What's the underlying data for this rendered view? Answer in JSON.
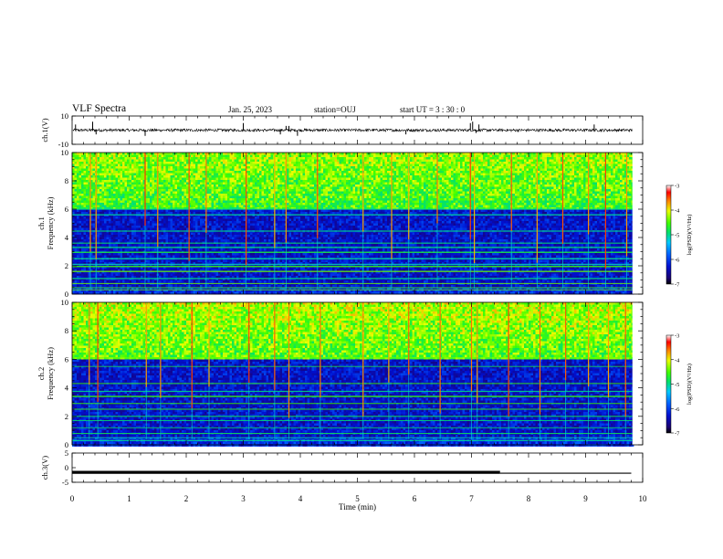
{
  "header": {
    "title": "VLF Spectra",
    "date": "Jan. 25, 2023",
    "station": "station=OUJ",
    "start": "start UT =  3 : 30 : 0"
  },
  "chart_data": [
    {
      "type": "line",
      "panel": "ch1-waveform",
      "ylabel": "ch.1(V)",
      "ylim": [
        -10,
        10
      ],
      "yticks": [
        "10",
        "-10"
      ],
      "xlim": [
        0,
        10
      ],
      "baseline": 0,
      "noise_amplitude": 1,
      "spike_times": [
        0.06,
        0.36,
        0.42,
        1.28,
        3.0,
        3.65,
        3.75,
        3.8,
        3.95,
        5.85,
        6.98,
        7.02,
        7.08,
        7.13,
        9.15
      ],
      "spike_amplitudes": [
        4,
        6,
        -3,
        -4,
        5,
        -3,
        3,
        3,
        -4,
        -3,
        5,
        6,
        -2,
        4,
        4
      ]
    },
    {
      "type": "heatmap",
      "panel": "ch1-spectrogram",
      "ylabel": "ch.1 Frequency (kHz)",
      "xlim": [
        0,
        10
      ],
      "ylim": [
        0,
        10
      ],
      "yticks": [
        "0",
        "2",
        "4",
        "6",
        "8",
        "10"
      ],
      "colorbar": {
        "label": "log(PSD)(V²/Hz)",
        "range": [
          -7,
          -3
        ],
        "ticks": [
          "-3",
          "-4",
          "-5",
          "-6",
          "-7"
        ]
      },
      "cutoff_khz": 5.9,
      "high_band_level": -4.6,
      "low_band_level": -6.3,
      "horizontal_lines_khz": [
        0.3,
        0.45,
        0.75,
        1.1,
        1.6,
        1.95,
        2.1,
        2.5,
        2.95,
        3.3,
        3.6,
        4.45,
        5.6,
        6.0
      ],
      "burst_times_min": [
        0.32,
        0.42,
        1.28,
        1.5,
        2.05,
        2.35,
        3.05,
        3.55,
        3.75,
        4.3,
        5.1,
        5.6,
        5.9,
        6.4,
        6.98,
        7.05,
        7.7,
        8.15,
        8.6,
        9.05,
        9.35,
        9.72
      ]
    },
    {
      "type": "heatmap",
      "panel": "ch2-spectrogram",
      "ylabel": "ch.2 Frequency (kHz)",
      "xlim": [
        0,
        10
      ],
      "ylim": [
        0,
        10
      ],
      "yticks": [
        "0",
        "2",
        "4",
        "6",
        "8",
        "10"
      ],
      "colorbar": {
        "label": "log(PSD)(V²/Hz)",
        "range": [
          -7,
          -3
        ],
        "ticks": [
          "-3",
          "-4",
          "-5",
          "-6",
          "-7"
        ]
      },
      "cutoff_khz": 6.0,
      "high_band_level": -4.5,
      "low_band_level": -6.3,
      "horizontal_lines_khz": [
        0.3,
        0.5,
        0.8,
        1.2,
        1.7,
        2.0,
        2.5,
        2.9,
        3.4,
        3.75,
        4.3,
        5.5,
        6.1
      ],
      "burst_times_min": [
        0.3,
        0.45,
        1.3,
        1.55,
        2.1,
        2.4,
        3.1,
        3.55,
        3.8,
        4.35,
        5.1,
        5.55,
        5.9,
        6.45,
        7.0,
        7.1,
        7.65,
        8.2,
        8.65,
        9.05,
        9.4,
        9.7
      ]
    },
    {
      "type": "line",
      "panel": "ch3-level",
      "ylabel": "ch.3(V)",
      "xlim": [
        0,
        10
      ],
      "ylim": [
        -5,
        5
      ],
      "yticks": [
        "5",
        "0",
        "-5"
      ],
      "segments": [
        {
          "x": [
            0,
            7.5
          ],
          "y": -1.6,
          "weight": "thick"
        },
        {
          "x": [
            7.5,
            9.8
          ],
          "y": -1.9,
          "weight": "thin"
        }
      ],
      "xlabel": "Time (min)",
      "xticks": [
        "0",
        "1",
        "2",
        "3",
        "4",
        "5",
        "6",
        "7",
        "8",
        "9",
        "10"
      ]
    }
  ]
}
